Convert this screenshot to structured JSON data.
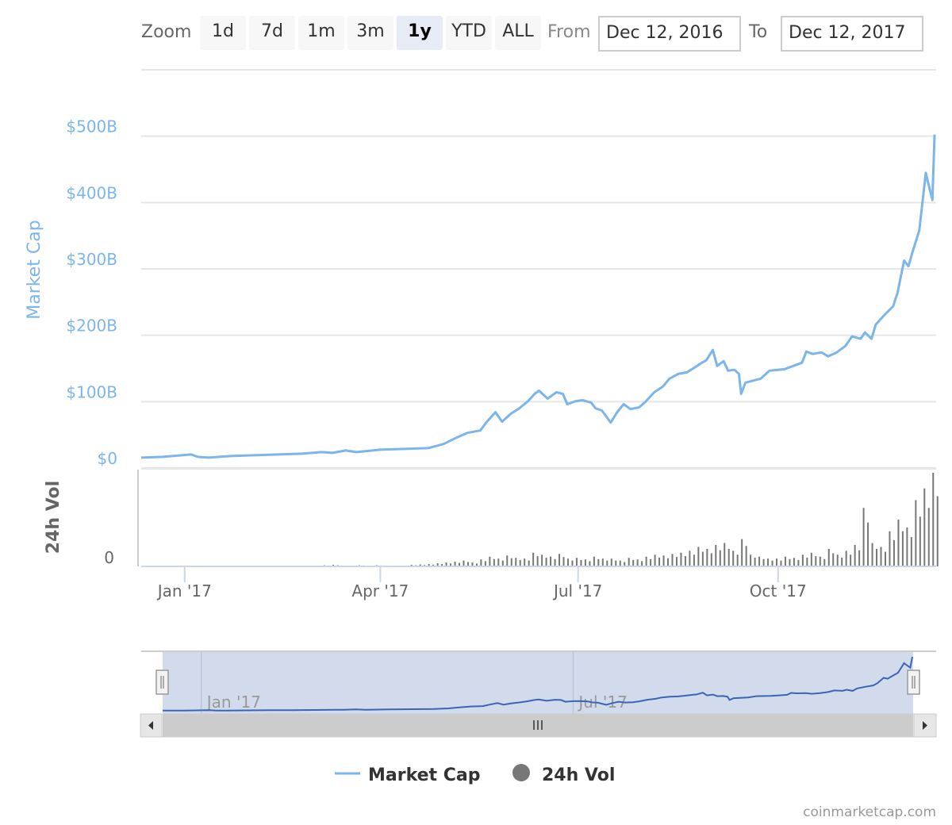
{
  "toolbar": {
    "zoom_label": "Zoom",
    "buttons": [
      "1d",
      "7d",
      "1m",
      "3m",
      "1y",
      "YTD",
      "ALL"
    ],
    "selected": "1y",
    "from_label": "From",
    "from_value": "Dec 12, 2016",
    "to_label": "To",
    "to_value": "Dec 12, 2017"
  },
  "legend": {
    "market_cap": "Market Cap",
    "volume": "24h Vol"
  },
  "credits": "coinmarketcap.com",
  "colors": {
    "market_cap": "#7cb5ec",
    "volume": "#777777",
    "navigator_line": "#3c64b4",
    "navigator_mask": "#d2dbec"
  },
  "chart_data": {
    "type": "line",
    "x_unit": "days since Dec 12, 2016",
    "x_range": [
      0,
      365
    ],
    "x_ticks": [
      {
        "day": 20,
        "label": "Jan '17"
      },
      {
        "day": 110,
        "label": "Apr '17"
      },
      {
        "day": 201,
        "label": "Jul '17"
      },
      {
        "day": 293,
        "label": "Oct '17"
      }
    ],
    "navigator_ticks": [
      {
        "day": 20,
        "label": "Jan '17"
      },
      {
        "day": 201,
        "label": "Jul '17"
      }
    ],
    "market_cap": {
      "ylabel": "Market Cap",
      "unit": "$B",
      "ylim": [
        0,
        600
      ],
      "y_ticks": [
        {
          "v": 0,
          "label": "$0"
        },
        {
          "v": 100,
          "label": "$100B"
        },
        {
          "v": 200,
          "label": "$200B"
        },
        {
          "v": 300,
          "label": "$300B"
        },
        {
          "v": 400,
          "label": "$400B"
        },
        {
          "v": 500,
          "label": "$500B"
        }
      ],
      "x": [
        0,
        10,
        23,
        26,
        31,
        41,
        52,
        63,
        74,
        83,
        88,
        94,
        99,
        110,
        121,
        132,
        139,
        145,
        150,
        156,
        159,
        163,
        166,
        170,
        174,
        178,
        181,
        183,
        187,
        191,
        194,
        196,
        200,
        203,
        207,
        209,
        212,
        216,
        219,
        222,
        225,
        229,
        232,
        236,
        240,
        243,
        247,
        251,
        254,
        258,
        260,
        263,
        265,
        268,
        270,
        273,
        275,
        276,
        278,
        282,
        285,
        289,
        293,
        296,
        300,
        304,
        306,
        309,
        313,
        316,
        320,
        324,
        327,
        331,
        333,
        336,
        338,
        342,
        346,
        348,
        351,
        353,
        355,
        358,
        361,
        362,
        364,
        365
      ],
      "y": [
        15.6,
        16.8,
        20.4,
        16.8,
        15.6,
        18.0,
        19.2,
        20.4,
        21.6,
        24.0,
        22.8,
        26.4,
        24.0,
        27.6,
        28.8,
        30.0,
        36.1,
        45.7,
        52.9,
        56.5,
        69.7,
        84.1,
        69.7,
        81.7,
        90.1,
        100.9,
        111.8,
        116.6,
        104.6,
        114.2,
        111.8,
        96.2,
        100.9,
        102.2,
        98.6,
        90.1,
        86.5,
        68.5,
        84.1,
        96.2,
        88.9,
        91.3,
        99.8,
        114.2,
        122.6,
        134.6,
        141.8,
        144.2,
        150.2,
        158.7,
        162.3,
        177.9,
        153.8,
        161.1,
        146.6,
        147.8,
        141.8,
        111.8,
        128.6,
        132.2,
        134.6,
        146.6,
        147.8,
        149.0,
        153.8,
        158.7,
        175.5,
        171.9,
        174.3,
        168.3,
        174.3,
        183.9,
        198.3,
        194.7,
        204.3,
        194.7,
        216.3,
        230.8,
        244.0,
        264.4,
        312.5,
        304.1,
        326.9,
        358.2,
        444.7,
        430.3,
        403.8,
        502.4
      ]
    },
    "volume": {
      "ylabel": "24h Vol",
      "unit": "$B",
      "ylim": [
        0,
        24
      ],
      "y_ticks": [
        {
          "v": 0,
          "label": "0"
        }
      ],
      "x_step_days": 4,
      "values": [
        0.1,
        0.1,
        0.1,
        0.2,
        0.2,
        0.1,
        0.1,
        0.1,
        0.1,
        0.1,
        0.1,
        0.1,
        0.1,
        0.2,
        0.1,
        0.1,
        0.1,
        0.1,
        0.2,
        0.1,
        0.2,
        0.3,
        0.4,
        0.2,
        0.2,
        0.3,
        0.2,
        0.3,
        0.2,
        0.2,
        0.2,
        0.4,
        0.5,
        0.6,
        0.8,
        1.0,
        1.2,
        1.5,
        1.0,
        1.8,
        2.5,
        2.0,
        2.8,
        2.2,
        2.0,
        3.5,
        3.0,
        2.5,
        3.2,
        2.0,
        2.2,
        1.8,
        2.5,
        2.0,
        2.0,
        1.5,
        2.2,
        1.8,
        2.5,
        3.0,
        2.8,
        3.2,
        3.5,
        4.0,
        5.0,
        4.5,
        5.5,
        6.0,
        4.0,
        7.0,
        3.0,
        2.5,
        2.0,
        2.0,
        2.5,
        2.2,
        3.0,
        3.5,
        2.5,
        4.5,
        3.0,
        4.0,
        5.5,
        15.0,
        6.0,
        5.0,
        9.0,
        12.0,
        10.0,
        17.0,
        20.0,
        24.0
      ]
    }
  }
}
